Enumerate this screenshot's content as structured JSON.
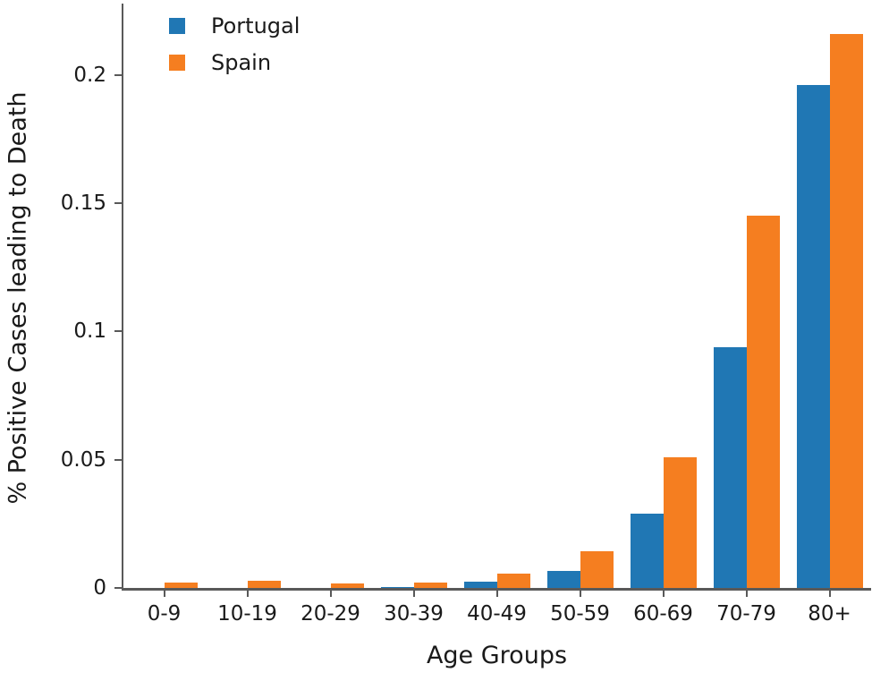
{
  "chart_data": {
    "type": "bar",
    "title": "",
    "xlabel": "Age Groups",
    "ylabel": "% Positive Cases leading to Death",
    "categories": [
      "0-9",
      "10-19",
      "20-29",
      "30-39",
      "40-49",
      "50-59",
      "60-69",
      "70-79",
      "80+"
    ],
    "series": [
      {
        "name": "Portugal",
        "color": "#2077b4",
        "values": [
          0,
          0,
          0,
          0.0005,
          0.0024,
          0.0066,
          0.029,
          0.094,
          0.196
        ]
      },
      {
        "name": "Spain",
        "color": "#f57e20",
        "values": [
          0.002,
          0.0027,
          0.0016,
          0.0022,
          0.0056,
          0.0143,
          0.051,
          0.145,
          0.216
        ]
      }
    ],
    "ylim": [
      0,
      0.2275
    ],
    "yticks": [
      {
        "value": 0,
        "label": "0"
      },
      {
        "value": 0.05,
        "label": "0.05"
      },
      {
        "value": 0.1,
        "label": "0.1"
      },
      {
        "value": 0.15,
        "label": "0.15"
      },
      {
        "value": 0.2,
        "label": "0.2"
      }
    ],
    "legend_position": "upper-left",
    "grid": false
  },
  "colors": {
    "background": "#ffffff",
    "spine": "#595959",
    "text": "#1a1a1a"
  }
}
